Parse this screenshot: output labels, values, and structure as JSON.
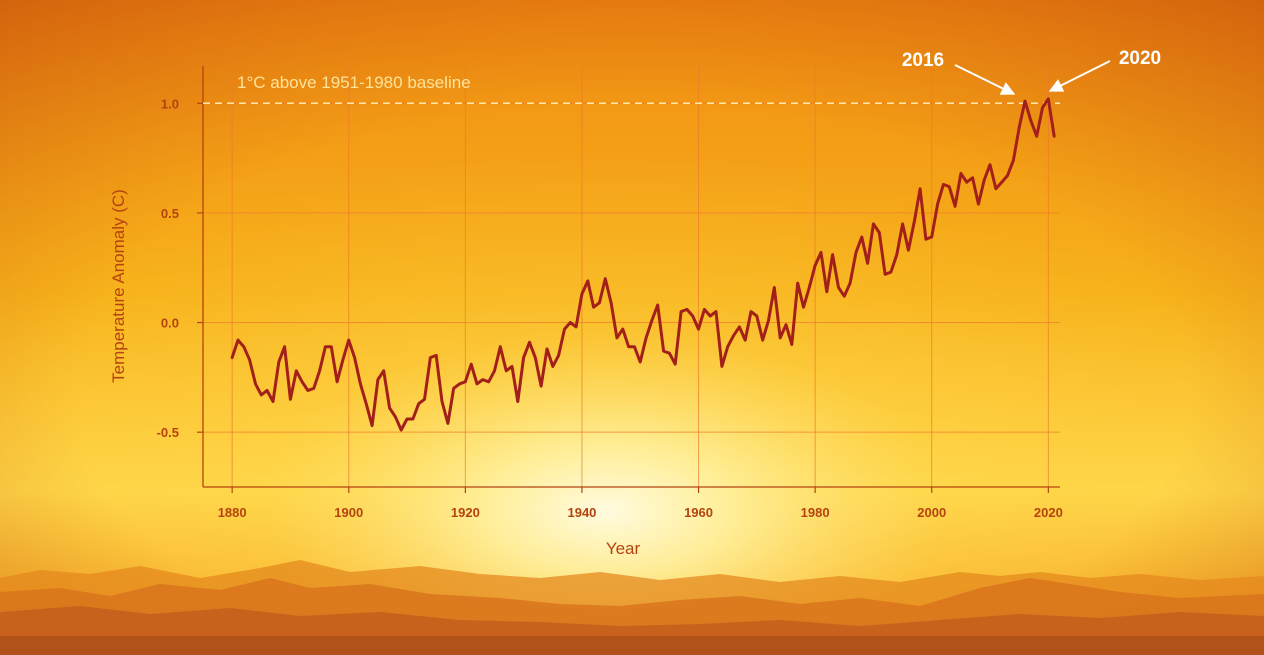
{
  "chart_data": {
    "type": "line",
    "title": "",
    "xlabel": "Year",
    "ylabel": "Temperature Anomaly (C)",
    "xlim": [
      1875,
      2022
    ],
    "ylim": [
      -0.75,
      1.17
    ],
    "x_ticks": [
      "1880",
      "1900",
      "1920",
      "1940",
      "1960",
      "1980",
      "2000",
      "2020"
    ],
    "y_ticks": [
      "1.0",
      "0.5",
      "0.0",
      "-0.5"
    ],
    "grid": true,
    "baseline": {
      "value": 1.0,
      "label": "1°C above 1951-1980 baseline"
    },
    "callouts": [
      {
        "label": "2016",
        "x": 2016,
        "y": 1.01
      },
      {
        "label": "2020",
        "x": 2020,
        "y": 1.02
      }
    ],
    "series": [
      {
        "color": "#a3201a",
        "x": [
          1880,
          1881,
          1882,
          1883,
          1884,
          1885,
          1886,
          1887,
          1888,
          1889,
          1890,
          1891,
          1892,
          1893,
          1894,
          1895,
          1896,
          1897,
          1898,
          1899,
          1900,
          1901,
          1902,
          1903,
          1904,
          1905,
          1906,
          1907,
          1908,
          1909,
          1910,
          1911,
          1912,
          1913,
          1914,
          1915,
          1916,
          1917,
          1918,
          1919,
          1920,
          1921,
          1922,
          1923,
          1924,
          1925,
          1926,
          1927,
          1928,
          1929,
          1930,
          1931,
          1932,
          1933,
          1934,
          1935,
          1936,
          1937,
          1938,
          1939,
          1940,
          1941,
          1942,
          1943,
          1944,
          1945,
          1946,
          1947,
          1948,
          1949,
          1950,
          1951,
          1952,
          1953,
          1954,
          1955,
          1956,
          1957,
          1958,
          1959,
          1960,
          1961,
          1962,
          1963,
          1964,
          1965,
          1966,
          1967,
          1968,
          1969,
          1970,
          1971,
          1972,
          1973,
          1974,
          1975,
          1976,
          1977,
          1978,
          1979,
          1980,
          1981,
          1982,
          1983,
          1984,
          1985,
          1986,
          1987,
          1988,
          1989,
          1990,
          1991,
          1992,
          1993,
          1994,
          1995,
          1996,
          1997,
          1998,
          1999,
          2000,
          2001,
          2002,
          2003,
          2004,
          2005,
          2006,
          2007,
          2008,
          2009,
          2010,
          2011,
          2012,
          2013,
          2014,
          2015,
          2016,
          2017,
          2018,
          2019,
          2020,
          2021
        ],
        "values": [
          -0.16,
          -0.08,
          -0.11,
          -0.17,
          -0.28,
          -0.33,
          -0.31,
          -0.36,
          -0.18,
          -0.11,
          -0.35,
          -0.22,
          -0.27,
          -0.31,
          -0.3,
          -0.22,
          -0.11,
          -0.11,
          -0.27,
          -0.17,
          -0.08,
          -0.16,
          -0.28,
          -0.37,
          -0.47,
          -0.26,
          -0.22,
          -0.39,
          -0.43,
          -0.49,
          -0.44,
          -0.44,
          -0.37,
          -0.35,
          -0.16,
          -0.15,
          -0.36,
          -0.46,
          -0.3,
          -0.28,
          -0.27,
          -0.19,
          -0.28,
          -0.26,
          -0.27,
          -0.22,
          -0.11,
          -0.22,
          -0.2,
          -0.36,
          -0.16,
          -0.09,
          -0.16,
          -0.29,
          -0.12,
          -0.2,
          -0.15,
          -0.03,
          0.0,
          -0.02,
          0.13,
          0.19,
          0.07,
          0.09,
          0.2,
          0.09,
          -0.07,
          -0.03,
          -0.11,
          -0.11,
          -0.18,
          -0.07,
          0.01,
          0.08,
          -0.13,
          -0.14,
          -0.19,
          0.05,
          0.06,
          0.03,
          -0.03,
          0.06,
          0.03,
          0.05,
          -0.2,
          -0.11,
          -0.06,
          -0.02,
          -0.08,
          0.05,
          0.03,
          -0.08,
          0.01,
          0.16,
          -0.07,
          -0.01,
          -0.1,
          0.18,
          0.07,
          0.16,
          0.26,
          0.32,
          0.14,
          0.31,
          0.16,
          0.12,
          0.18,
          0.32,
          0.39,
          0.27,
          0.45,
          0.41,
          0.22,
          0.23,
          0.31,
          0.45,
          0.33,
          0.46,
          0.61,
          0.38,
          0.39,
          0.54,
          0.63,
          0.62,
          0.53,
          0.68,
          0.64,
          0.66,
          0.54,
          0.65,
          0.72,
          0.61,
          0.64,
          0.67,
          0.74,
          0.89,
          1.01,
          0.92,
          0.85,
          0.98,
          1.02,
          0.85
        ]
      }
    ]
  }
}
